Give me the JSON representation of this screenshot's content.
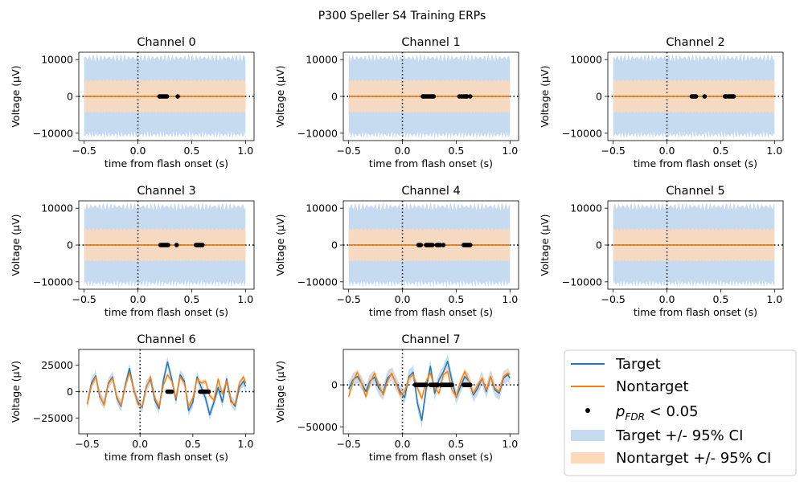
{
  "figure": {
    "title": "P300 Speller S4 Training ERPs",
    "colors": {
      "target": "#1f77b4",
      "nontarget": "#ff7f0e",
      "target_ci": "#c6dbef",
      "nontarget_ci": "#fdd9b8",
      "sig": "#000000"
    }
  },
  "legend": {
    "target": "Target",
    "nontarget": "Nontarget",
    "sig_p": "p",
    "sig_sub": "FDR",
    "sig_rest": " < 0.05",
    "target_ci": "Target +/- 95% CI",
    "nontarget_ci": "Nontarget +/- 95% CI"
  },
  "chart_data": [
    {
      "type": "line",
      "title": "Channel 0",
      "xlabel": "time from flash onset (s)",
      "ylabel": "Voltage (µV)",
      "xlim": [
        -0.55,
        1.08
      ],
      "ylim": [
        -12000,
        12000
      ],
      "xticks": [
        -0.5,
        0.0,
        0.5,
        1.0
      ],
      "xticklabels": [
        "−0.5",
        "0.0",
        "0.5",
        "1.0"
      ],
      "yticks": [
        -10000,
        0,
        10000
      ],
      "yticklabels": [
        "−10000",
        "0",
        "10000"
      ],
      "series": [
        {
          "name": "Target",
          "x": [
            -0.5,
            1.0
          ],
          "y": [
            0,
            0
          ],
          "ci": 10500
        },
        {
          "name": "Nontarget",
          "x": [
            -0.5,
            1.0
          ],
          "y": [
            0,
            0
          ],
          "ci": 4300
        }
      ],
      "sig_x": [
        0.2,
        0.21,
        0.22,
        0.23,
        0.24,
        0.25,
        0.26,
        0.27,
        0.37
      ]
    },
    {
      "type": "line",
      "title": "Channel 1",
      "xlabel": "time from flash onset (s)",
      "ylabel": "Voltage (µV)",
      "xlim": [
        -0.55,
        1.08
      ],
      "ylim": [
        -12000,
        12000
      ],
      "xticks": [
        -0.5,
        0.0,
        0.5,
        1.0
      ],
      "xticklabels": [
        "−0.5",
        "0.0",
        "0.5",
        "1.0"
      ],
      "yticks": [
        -10000,
        0,
        10000
      ],
      "yticklabels": [
        "−10000",
        "0",
        "10000"
      ],
      "series": [
        {
          "name": "Target",
          "x": [
            -0.5,
            1.0
          ],
          "y": [
            0,
            0
          ],
          "ci": 10500
        },
        {
          "name": "Nontarget",
          "x": [
            -0.5,
            1.0
          ],
          "y": [
            0,
            0
          ],
          "ci": 4300
        }
      ],
      "sig_x": [
        0.19,
        0.2,
        0.21,
        0.22,
        0.23,
        0.24,
        0.25,
        0.26,
        0.27,
        0.28,
        0.29,
        0.53,
        0.55,
        0.57,
        0.58,
        0.59,
        0.6,
        0.63
      ]
    },
    {
      "type": "line",
      "title": "Channel 2",
      "xlabel": "time from flash onset (s)",
      "ylabel": "Voltage (µV)",
      "xlim": [
        -0.55,
        1.08
      ],
      "ylim": [
        -12000,
        12000
      ],
      "xticks": [
        -0.5,
        0.0,
        0.5,
        1.0
      ],
      "xticklabels": [
        "−0.5",
        "0.0",
        "0.5",
        "1.0"
      ],
      "yticks": [
        -10000,
        0,
        10000
      ],
      "yticklabels": [
        "−10000",
        "0",
        "10000"
      ],
      "series": [
        {
          "name": "Target",
          "x": [
            -0.5,
            1.0
          ],
          "y": [
            0,
            0
          ],
          "ci": 10500
        },
        {
          "name": "Nontarget",
          "x": [
            -0.5,
            1.0
          ],
          "y": [
            0,
            0
          ],
          "ci": 4300
        }
      ],
      "sig_x": [
        0.23,
        0.24,
        0.25,
        0.26,
        0.27,
        0.35,
        0.54,
        0.55,
        0.57,
        0.58,
        0.59,
        0.6,
        0.61,
        0.62
      ]
    },
    {
      "type": "line",
      "title": "Channel 3",
      "xlabel": "time from flash onset (s)",
      "ylabel": "Voltage (µV)",
      "xlim": [
        -0.55,
        1.08
      ],
      "ylim": [
        -12000,
        12000
      ],
      "xticks": [
        -0.5,
        0.0,
        0.5,
        1.0
      ],
      "xticklabels": [
        "−0.5",
        "0.0",
        "0.5",
        "1.0"
      ],
      "yticks": [
        -10000,
        0,
        10000
      ],
      "yticklabels": [
        "−10000",
        "0",
        "10000"
      ],
      "series": [
        {
          "name": "Target",
          "x": [
            -0.5,
            1.0
          ],
          "y": [
            0,
            0
          ],
          "ci": 10500
        },
        {
          "name": "Nontarget",
          "x": [
            -0.5,
            1.0
          ],
          "y": [
            0,
            0
          ],
          "ci": 4300
        }
      ],
      "sig_x": [
        0.21,
        0.22,
        0.23,
        0.24,
        0.25,
        0.26,
        0.27,
        0.28,
        0.36,
        0.54,
        0.55,
        0.56,
        0.57,
        0.58,
        0.59,
        0.6
      ]
    },
    {
      "type": "line",
      "title": "Channel 4",
      "xlabel": "time from flash onset (s)",
      "ylabel": "Voltage (µV)",
      "xlim": [
        -0.55,
        1.08
      ],
      "ylim": [
        -12000,
        12000
      ],
      "xticks": [
        -0.5,
        0.0,
        0.5,
        1.0
      ],
      "xticklabels": [
        "−0.5",
        "0.0",
        "0.5",
        "1.0"
      ],
      "yticks": [
        -10000,
        0,
        10000
      ],
      "yticklabels": [
        "−10000",
        "0",
        "10000"
      ],
      "series": [
        {
          "name": "Target",
          "x": [
            -0.5,
            1.0
          ],
          "y": [
            0,
            0
          ],
          "ci": 10500
        },
        {
          "name": "Nontarget",
          "x": [
            -0.5,
            1.0
          ],
          "y": [
            0,
            0
          ],
          "ci": 4300
        }
      ],
      "sig_x": [
        0.15,
        0.16,
        0.17,
        0.22,
        0.23,
        0.24,
        0.25,
        0.26,
        0.27,
        0.28,
        0.32,
        0.33,
        0.34,
        0.35,
        0.38,
        0.57,
        0.58,
        0.59,
        0.6,
        0.61,
        0.62,
        0.63
      ]
    },
    {
      "type": "line",
      "title": "Channel 5",
      "xlabel": "time from flash onset (s)",
      "ylabel": "Voltage (µV)",
      "xlim": [
        -0.55,
        1.08
      ],
      "ylim": [
        -12000,
        12000
      ],
      "xticks": [
        -0.5,
        0.0,
        0.5,
        1.0
      ],
      "xticklabels": [
        "−0.5",
        "0.0",
        "0.5",
        "1.0"
      ],
      "yticks": [
        -10000,
        0,
        10000
      ],
      "yticklabels": [
        "−10000",
        "0",
        "10000"
      ],
      "series": [
        {
          "name": "Target",
          "x": [
            -0.5,
            1.0
          ],
          "y": [
            0,
            0
          ],
          "ci": 10500
        },
        {
          "name": "Nontarget",
          "x": [
            -0.5,
            1.0
          ],
          "y": [
            0,
            0
          ],
          "ci": 4300
        }
      ],
      "sig_x": []
    },
    {
      "type": "line",
      "title": "Channel 6",
      "xlabel": "time from flash onset (s)",
      "ylabel": "Voltage (µV)",
      "xlim": [
        -0.58,
        1.08
      ],
      "ylim": [
        -40000,
        40000
      ],
      "xticks": [
        -0.5,
        0.0,
        0.5,
        1.0
      ],
      "xticklabels": [
        "−0.5",
        "0.0",
        "0.5",
        "1.0"
      ],
      "yticks": [
        -25000,
        0,
        25000
      ],
      "yticklabels": [
        "−25000",
        "0",
        "25000"
      ],
      "series": [
        {
          "name": "Target",
          "ci": 5000,
          "x": [
            -0.5,
            -0.46,
            -0.42,
            -0.38,
            -0.34,
            -0.3,
            -0.26,
            -0.22,
            -0.18,
            -0.14,
            -0.1,
            -0.06,
            -0.02,
            0.02,
            0.06,
            0.1,
            0.14,
            0.18,
            0.22,
            0.26,
            0.3,
            0.34,
            0.38,
            0.42,
            0.46,
            0.5,
            0.54,
            0.58,
            0.62,
            0.66,
            0.7,
            0.74,
            0.78,
            0.82,
            0.86,
            0.9,
            0.94,
            0.98,
            1.0
          ],
          "y": [
            -12000,
            8000,
            15000,
            -5000,
            -12000,
            8000,
            14000,
            -6000,
            -14000,
            6000,
            22000,
            2000,
            -10000,
            -15000,
            5000,
            12000,
            -8000,
            -16000,
            10000,
            28000,
            12000,
            -8000,
            16000,
            10000,
            -18000,
            -10000,
            14000,
            4000,
            -6000,
            -22000,
            -10000,
            4000,
            -10000,
            12000,
            -8000,
            -14000,
            4000,
            10000,
            5000
          ]
        },
        {
          "name": "Nontarget",
          "ci": 2500,
          "x": [
            -0.5,
            -0.46,
            -0.42,
            -0.38,
            -0.34,
            -0.3,
            -0.26,
            -0.22,
            -0.18,
            -0.14,
            -0.1,
            -0.06,
            -0.02,
            0.02,
            0.06,
            0.1,
            0.14,
            0.18,
            0.22,
            0.26,
            0.3,
            0.34,
            0.38,
            0.42,
            0.46,
            0.5,
            0.54,
            0.58,
            0.62,
            0.66,
            0.7,
            0.74,
            0.78,
            0.82,
            0.86,
            0.9,
            0.94,
            0.98,
            1.0
          ],
          "y": [
            -12000,
            6000,
            14000,
            -4000,
            -13000,
            7000,
            13000,
            -5000,
            -13000,
            5000,
            18000,
            2000,
            -12000,
            -14000,
            4000,
            14000,
            -6000,
            -14000,
            6000,
            16000,
            10000,
            -6000,
            14000,
            8000,
            -14000,
            -6000,
            12000,
            8000,
            10000,
            -4000,
            -8000,
            12000,
            -2000,
            10000,
            -10000,
            -12000,
            8000,
            14000,
            8000
          ]
        }
      ],
      "sig_x": [
        0.26,
        0.27,
        0.28,
        0.29,
        0.3,
        0.57,
        0.58,
        0.59,
        0.6,
        0.61,
        0.62,
        0.63,
        0.64,
        0.65
      ]
    },
    {
      "type": "line",
      "title": "Channel 7",
      "xlabel": "time from flash onset (s)",
      "ylabel": "Voltage (µV)",
      "xlim": [
        -0.55,
        1.08
      ],
      "ylim": [
        -58000,
        42000
      ],
      "xticks": [
        -0.5,
        0.0,
        0.5,
        1.0
      ],
      "xticklabels": [
        "−0.5",
        "0.0",
        "0.5",
        "1.0"
      ],
      "yticks": [
        -50000,
        0
      ],
      "yticklabels": [
        "−50000",
        "0"
      ],
      "series": [
        {
          "name": "Target",
          "ci": 8000,
          "x": [
            -0.5,
            -0.46,
            -0.42,
            -0.38,
            -0.34,
            -0.3,
            -0.26,
            -0.22,
            -0.18,
            -0.14,
            -0.1,
            -0.06,
            -0.02,
            0.02,
            0.06,
            0.1,
            0.14,
            0.18,
            0.22,
            0.26,
            0.3,
            0.34,
            0.38,
            0.42,
            0.46,
            0.5,
            0.54,
            0.58,
            0.62,
            0.66,
            0.7,
            0.74,
            0.78,
            0.82,
            0.86,
            0.9,
            0.94,
            0.98,
            1.0
          ],
          "y": [
            -5000,
            6000,
            10000,
            2000,
            -8000,
            5000,
            9000,
            -4000,
            -10000,
            8000,
            13000,
            2000,
            -8000,
            -15000,
            10000,
            15000,
            -22000,
            -42000,
            -5000,
            22000,
            -10000,
            6000,
            15000,
            28000,
            5000,
            -15000,
            -2000,
            10000,
            4000,
            -12000,
            -4000,
            8000,
            -8000,
            10000,
            -6000,
            -10000,
            8000,
            12000,
            8000
          ]
        },
        {
          "name": "Nontarget",
          "ci": 4000,
          "x": [
            -0.5,
            -0.46,
            -0.42,
            -0.38,
            -0.34,
            -0.3,
            -0.26,
            -0.22,
            -0.18,
            -0.14,
            -0.1,
            -0.06,
            -0.02,
            0.02,
            0.06,
            0.1,
            0.14,
            0.18,
            0.22,
            0.26,
            0.3,
            0.34,
            0.38,
            0.42,
            0.46,
            0.5,
            0.54,
            0.58,
            0.62,
            0.66,
            0.7,
            0.74,
            0.78,
            0.82,
            0.86,
            0.9,
            0.94,
            0.98,
            1.0
          ],
          "y": [
            -14000,
            4000,
            15000,
            2000,
            -14000,
            3000,
            14000,
            0,
            -12000,
            4000,
            14000,
            2000,
            -12000,
            -8000,
            8000,
            12000,
            -4000,
            -16000,
            4000,
            14000,
            -4000,
            -10000,
            12000,
            16000,
            -6000,
            -14000,
            4000,
            16000,
            4000,
            -10000,
            0,
            8000,
            -6000,
            10000,
            -4000,
            -8000,
            10000,
            14000,
            12000
          ]
        }
      ],
      "sig_x": [
        0.12,
        0.13,
        0.14,
        0.15,
        0.16,
        0.17,
        0.18,
        0.19,
        0.2,
        0.21,
        0.22,
        0.26,
        0.27,
        0.28,
        0.29,
        0.3,
        0.31,
        0.32,
        0.33,
        0.36,
        0.37,
        0.38,
        0.39,
        0.4,
        0.41,
        0.42,
        0.43,
        0.44,
        0.45,
        0.46,
        0.57,
        0.58,
        0.59,
        0.6,
        0.61,
        0.62,
        0.63
      ]
    }
  ]
}
